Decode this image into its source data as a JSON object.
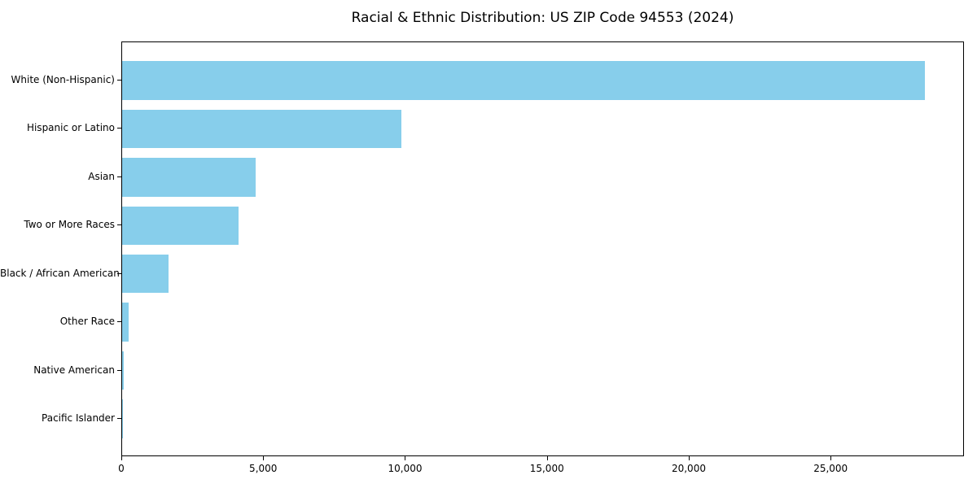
{
  "chart_data": {
    "type": "bar",
    "orientation": "horizontal",
    "title": "Racial & Ethnic Distribution: US ZIP Code 94553 (2024)",
    "categories": [
      "White (Non-Hispanic)",
      "Hispanic or Latino",
      "Asian",
      "Two or More Races",
      "Black / African American",
      "Other Race",
      "Native American",
      "Pacific Islander"
    ],
    "values": [
      28290,
      9830,
      4710,
      4110,
      1630,
      230,
      50,
      15
    ],
    "xlabel": "",
    "ylabel": "",
    "xlim": [
      0,
      29700
    ],
    "x_ticks": [
      {
        "value": 0,
        "label": "0"
      },
      {
        "value": 5000,
        "label": "5,000"
      },
      {
        "value": 10000,
        "label": "10,000"
      },
      {
        "value": 15000,
        "label": "15,000"
      },
      {
        "value": 20000,
        "label": "20,000"
      },
      {
        "value": 25000,
        "label": "25,000"
      }
    ],
    "bar_color": "#87CEEB",
    "frame_color": "#000000",
    "grid": false,
    "legend": "none"
  }
}
